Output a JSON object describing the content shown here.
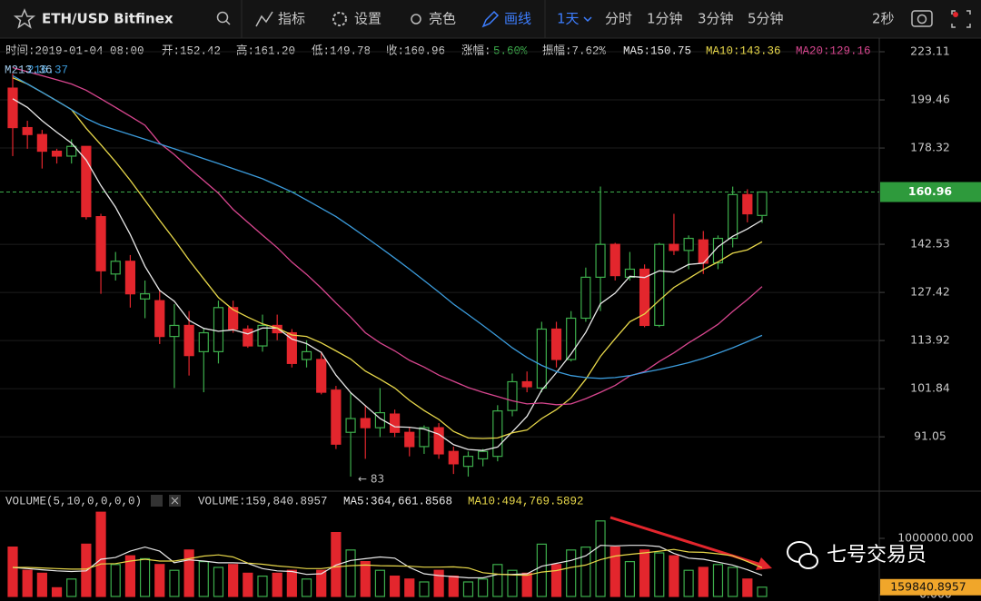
{
  "toolbar": {
    "symbol": "ETH/USD Bitfinex",
    "indicators": "指标",
    "settings": "设置",
    "theme": "亮色",
    "draw": "画线",
    "interval_active": "1天",
    "intervals": [
      "分时",
      "1分钟",
      "3分钟",
      "5分钟"
    ],
    "refresh": "2秒"
  },
  "info_bar": [
    "时间:2019-01-04 08:00",
    "开:152.42",
    "高:161.20",
    "低:149.78",
    "收:160.96",
    "涨幅:",
    "5.60%",
    "振幅:7.62%"
  ],
  "watermark": "七号交易员",
  "chart_data": [
    {
      "type": "candlestick",
      "log_scale": true,
      "grid": true,
      "up_color": "#3dae4c",
      "down_color": "#e3262d",
      "overlay_labels": [
        "M213.36",
        "216.37"
      ],
      "open": [
        205,
        187,
        184,
        177,
        175,
        179,
        152,
        133,
        137,
        125.5,
        125,
        115,
        118,
        111,
        111,
        123,
        117,
        112.5,
        118,
        116,
        109,
        109,
        101.5,
        92,
        95,
        93,
        96,
        92,
        89,
        93,
        88,
        85,
        86.5,
        87,
        96.8,
        103.5,
        102,
        117,
        109,
        120,
        132,
        142.5,
        132,
        134.5,
        118,
        142.5,
        140.5,
        144,
        136.5,
        144.5,
        160,
        152.42
      ],
      "high": [
        212,
        190,
        186,
        178,
        182,
        179,
        153,
        140,
        139,
        131,
        128,
        124,
        122,
        117,
        125,
        125,
        118,
        121,
        121,
        117,
        114,
        111,
        102.5,
        101,
        98,
        102,
        97,
        93,
        93.5,
        94,
        89,
        88,
        88.5,
        98,
        105.5,
        106,
        119,
        119,
        122,
        135,
        163,
        143,
        140,
        136,
        143,
        153,
        145.5,
        147,
        145.5,
        163,
        162,
        161.2
      ],
      "low": [
        175,
        178,
        170,
        172,
        172,
        151,
        127,
        131,
        123,
        120,
        113,
        102,
        105,
        101,
        108,
        116,
        112,
        111,
        114,
        107,
        107,
        100.5,
        88.5,
        83,
        86.5,
        91,
        91,
        87,
        87.5,
        86.5,
        83.5,
        83,
        85,
        86,
        95.5,
        101,
        101,
        107,
        108.5,
        119,
        122,
        131,
        131,
        117.5,
        117.5,
        139,
        134.5,
        133,
        134.5,
        141.5,
        150,
        149.78
      ],
      "close": [
        187,
        184,
        177,
        175,
        179,
        152,
        134,
        137,
        127,
        127,
        115,
        118,
        110,
        116,
        123,
        117,
        112.5,
        118,
        116,
        108,
        111,
        101,
        89.5,
        95,
        93,
        96.3,
        92,
        89,
        93,
        87.5,
        85.5,
        87,
        88,
        96.7,
        103.5,
        102.3,
        117,
        109,
        120,
        132,
        142.5,
        132.5,
        134.5,
        118,
        142.5,
        140.5,
        144.5,
        136.4,
        144.5,
        160,
        153,
        160.96
      ],
      "series": [
        {
          "name": "MA5:150.75",
          "color": "#e8e8e8",
          "values": [
            200,
            196,
            190,
            185,
            180.4,
            173.4,
            163.4,
            155.4,
            145.8,
            135.4,
            128,
            124.8,
            119.4,
            117.2,
            116.4,
            116.8,
            115.7,
            117.3,
            117.3,
            114.3,
            113.1,
            110.8,
            105.1,
            100.9,
            97.9,
            95,
            93.2,
            93.1,
            92.7,
            91.6,
            89.4,
            88.4,
            88.2,
            88.9,
            92.1,
            95.5,
            101.5,
            105.7,
            110.4,
            116.1,
            124.1,
            127.2,
            132.3,
            131.9,
            134,
            133.6,
            136,
            136.4,
            141.7,
            145.2,
            147.7,
            150.75
          ]
        },
        {
          "name": "MA10:143.36",
          "color": "#e8d84a",
          "values": [
            210,
            207,
            203,
            199,
            195,
            186.7,
            179.7,
            172.7,
            165.4,
            157.9,
            150.7,
            144.1,
            137.4,
            131.5,
            125.9,
            122.4,
            120.3,
            118.4,
            117.3,
            115.4,
            115,
            113.3,
            111.2,
            109.1,
            106.1,
            104.1,
            102,
            99.1,
            96.8,
            94.8,
            92.2,
            90.8,
            90.7,
            90.8,
            91.9,
            92.5,
            95,
            97,
            99.7,
            104.1,
            109.8,
            114.4,
            119,
            121.2,
            125.1,
            128.9,
            131.6,
            134.4,
            136.8,
            139.6,
            140.7,
            143.36
          ]
        },
        {
          "name": "MA20:129.16",
          "color": "#d8468f",
          "values": [
            215,
            213,
            211,
            209,
            207,
            204,
            200,
            196,
            192,
            188,
            180.4,
            175.6,
            170.2,
            165.3,
            160.5,
            154.6,
            150,
            145.6,
            141.4,
            136.7,
            132.9,
            128.7,
            124.3,
            120.3,
            116,
            113.3,
            111.2,
            108.8,
            107.1,
            105.1,
            103.6,
            102.1,
            101,
            100,
            99,
            98.3,
            98.5,
            98.1,
            98.3,
            99.5,
            101,
            102.6,
            104.9,
            106,
            108.5,
            110.7,
            113.3,
            115.7,
            118.3,
            121.9,
            125.3,
            129.16
          ]
        },
        {
          "color": "#3b9bdb",
          "values": [
            211,
            207,
            203,
            199,
            195,
            191,
            188,
            186,
            184,
            182,
            180,
            178,
            176,
            174,
            172,
            170,
            168,
            166,
            163.5,
            161,
            158,
            155,
            152,
            148.5,
            145,
            141.5,
            138,
            134.5,
            131,
            127.5,
            124,
            121,
            118,
            115,
            112,
            109.5,
            107.5,
            106,
            105,
            104.5,
            104.3,
            104.5,
            105,
            105.8,
            106.5,
            107.3,
            108.2,
            109.3,
            110.6,
            112,
            113.6,
            115.3
          ]
        }
      ],
      "ylim": [
        80.4,
        230.3
      ],
      "yticks": [
        91.05,
        101.84,
        113.92,
        127.42,
        142.53,
        178.32,
        199.46,
        223.11
      ],
      "last_price": 160.96,
      "min_label": {
        "value": 83,
        "label": "← 83"
      }
    },
    {
      "type": "bar",
      "title": "VOLUME(5,10,0,0,0,0)",
      "subtitle": "VOLUME:159,840.8957",
      "values": [
        850000,
        450000,
        400000,
        150000,
        300000,
        900000,
        1450000,
        550000,
        700000,
        650000,
        550000,
        450000,
        800000,
        600000,
        500000,
        550000,
        400000,
        350000,
        400000,
        450000,
        300000,
        450000,
        1100000,
        800000,
        600000,
        450000,
        350000,
        300000,
        250000,
        450000,
        350000,
        250000,
        300000,
        550000,
        450000,
        400000,
        900000,
        550000,
        800000,
        850000,
        1300000,
        850000,
        600000,
        800000,
        750000,
        700000,
        450000,
        500000,
        550000,
        500000,
        300000,
        159840.8957
      ],
      "series": [
        {
          "name": "MA5:364,661.8568",
          "color": "#e8e8e8",
          "values": [
            500000,
            480000,
            460000,
            440000,
            430000,
            440000,
            640000,
            670000,
            780000,
            850000,
            780000,
            580000,
            630000,
            610000,
            580000,
            580000,
            570000,
            480000,
            440000,
            430000,
            380000,
            390000,
            540000,
            620000,
            650000,
            680000,
            660000,
            500000,
            390000,
            360000,
            340000,
            320000,
            320000,
            380000,
            380000,
            390000,
            520000,
            570000,
            620000,
            700000,
            880000,
            870000,
            880000,
            880000,
            860000,
            740000,
            660000,
            640000,
            590000,
            540000,
            460000,
            364661.8568
          ]
        },
        {
          "name": "MA10:494,769.5892",
          "color": "#e8d84a",
          "values": [
            500000,
            500000,
            490000,
            480000,
            470000,
            470000,
            560000,
            565000,
            610000,
            640000,
            610000,
            610000,
            650000,
            695000,
            715000,
            680000,
            575000,
            555000,
            525000,
            505000,
            480000,
            480000,
            510000,
            530000,
            540000,
            530000,
            525000,
            520000,
            505000,
            505000,
            510000,
            490000,
            410000,
            385000,
            370000,
            365000,
            420000,
            445000,
            500000,
            540000,
            635000,
            695000,
            725000,
            750000,
            780000,
            810000,
            765000,
            760000,
            735000,
            700000,
            600000,
            494769.5892
          ]
        }
      ],
      "ylim": [
        0,
        1500000
      ],
      "yticks": [
        {
          "value": 1000000,
          "label": "1000000.000"
        },
        {
          "value": 0,
          "label": "0.000"
        }
      ],
      "last_value": {
        "value": 159840.8957,
        "label": "159840.8957"
      }
    }
  ]
}
